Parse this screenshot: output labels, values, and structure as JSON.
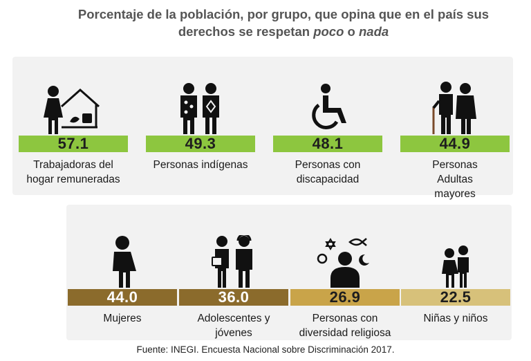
{
  "title": {
    "line1": "Porcentaje de la población, por grupo, que opina que en el país sus",
    "line2_prefix": "derechos se respetan ",
    "line2_em1": "poco",
    "line2_mid": " o ",
    "line2_em2": "nada"
  },
  "colors": {
    "green": "#8dc63f",
    "brown": "#8b6b2c",
    "gold": "#c9a449",
    "tan": "#d7c17a",
    "panel": "#f2f2f2"
  },
  "chart_data": {
    "type": "bar",
    "categories": [
      "Trabajadoras del hogar remuneradas",
      "Personas indígenas",
      "Personas con discapacidad",
      "Personas Adultas mayores",
      "Mujeres",
      "Adolescentes y jóvenes",
      "Personas con diversidad religiosa",
      "Niñas y niños"
    ],
    "values": [
      57.1,
      49.3,
      48.1,
      44.9,
      44.0,
      36.0,
      26.9,
      22.5
    ],
    "value_labels": [
      "57.1",
      "49.3",
      "48.1",
      "44.9",
      "44.0",
      "36.0",
      "26.9",
      "22.5"
    ],
    "label_lines": [
      [
        "Trabajadoras del",
        "hogar remuneradas"
      ],
      [
        "Personas indígenas"
      ],
      [
        "Personas con",
        "discapacidad"
      ],
      [
        "Personas",
        "Adultas",
        "mayores"
      ],
      [
        "Mujeres"
      ],
      [
        "Adolescentes y",
        "jóvenes"
      ],
      [
        "Personas con",
        "diversidad religiosa"
      ],
      [
        "Niñas y niños"
      ]
    ],
    "icons": [
      "domestic-worker-icon",
      "indigenous-couple-icon",
      "wheelchair-icon",
      "elderly-couple-icon",
      "woman-icon",
      "youth-couple-icon",
      "religious-diversity-icon",
      "children-icon"
    ],
    "bar_colors": [
      "green",
      "green",
      "green",
      "green",
      "brown",
      "brown",
      "gold",
      "tan"
    ],
    "unit": "%"
  },
  "source": "Fuente: INEGI. Encuesta Nacional sobre Discriminación 2017."
}
